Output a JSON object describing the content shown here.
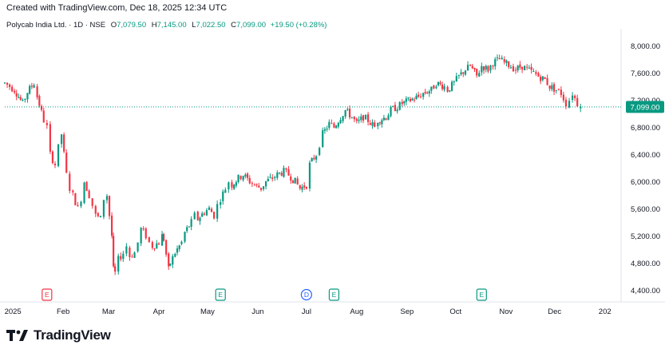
{
  "header": {
    "created_text": "Created with TradingView.com, Dec 18, 2025 12:34 UTC"
  },
  "legend": {
    "symbol": "Polycab India Ltd. · 1D · NSE",
    "open_label": "O",
    "open": "7,079.50",
    "high_label": "H",
    "high": "7,145.00",
    "low_label": "L",
    "low": "7,022.50",
    "close_label": "C",
    "close": "7,099.00",
    "change": "+19.50 (+0.28%)"
  },
  "footer": {
    "brand": "TradingView"
  },
  "colors": {
    "up": "#089981",
    "down": "#f23645",
    "price_line": "#089981",
    "earnings": "#089981",
    "earnings_red": "#f23645",
    "dividend": "#2962ff"
  },
  "chart_data": {
    "type": "candlestick",
    "title": "Polycab India Ltd. · 1D · NSE",
    "last_price": 7099,
    "last_price_label": "7,099.00",
    "ylim": [
      4250,
      8250
    ],
    "y_ticks": [
      4400,
      4800,
      5200,
      5600,
      6000,
      6400,
      6800,
      7200,
      7600,
      8000
    ],
    "y_tick_labels": [
      "4,400.00",
      "4,800.00",
      "5,200.00",
      "5,600.00",
      "6,000.00",
      "6,400.00",
      "6,800.00",
      "7,200.00",
      "7,600.00",
      "8,000.00"
    ],
    "x_range": [
      "2024-12-27",
      "2026-01-10"
    ],
    "x_ticks": [
      {
        "date": "2025-01-01",
        "label": "2025"
      },
      {
        "date": "2025-02-01",
        "label": "Feb"
      },
      {
        "date": "2025-03-01",
        "label": "Mar"
      },
      {
        "date": "2025-04-01",
        "label": "Apr"
      },
      {
        "date": "2025-05-01",
        "label": "May"
      },
      {
        "date": "2025-06-01",
        "label": "Jun"
      },
      {
        "date": "2025-07-01",
        "label": "Jul"
      },
      {
        "date": "2025-08-01",
        "label": "Aug"
      },
      {
        "date": "2025-09-01",
        "label": "Sep"
      },
      {
        "date": "2025-10-01",
        "label": "Oct"
      },
      {
        "date": "2025-11-01",
        "label": "Nov"
      },
      {
        "date": "2025-12-01",
        "label": "Dec"
      },
      {
        "date": "2026-01-01",
        "label": "202"
      }
    ],
    "events": [
      {
        "date": "2025-01-22",
        "label": "E",
        "kind": "earnings-down"
      },
      {
        "date": "2025-05-09",
        "label": "E",
        "kind": "earnings"
      },
      {
        "date": "2025-07-01",
        "label": "D",
        "kind": "dividend"
      },
      {
        "date": "2025-07-18",
        "label": "E",
        "kind": "earnings"
      },
      {
        "date": "2025-10-17",
        "label": "E",
        "kind": "earnings"
      }
    ],
    "closes": [
      [
        "2024-12-27",
        7450
      ],
      [
        "2025-01-02",
        7350
      ],
      [
        "2025-01-07",
        7150
      ],
      [
        "2025-01-10",
        7320
      ],
      [
        "2025-01-14",
        7450
      ],
      [
        "2025-01-16",
        7250
      ],
      [
        "2025-01-20",
        6900
      ],
      [
        "2025-01-22",
        6800
      ],
      [
        "2025-01-24",
        6400
      ],
      [
        "2025-01-27",
        6250
      ],
      [
        "2025-01-29",
        6500
      ],
      [
        "2025-01-31",
        6700
      ],
      [
        "2025-02-03",
        6100
      ],
      [
        "2025-02-05",
        5900
      ],
      [
        "2025-02-07",
        5800
      ],
      [
        "2025-02-10",
        5600
      ],
      [
        "2025-02-12",
        5750
      ],
      [
        "2025-02-14",
        6000
      ],
      [
        "2025-02-17",
        5800
      ],
      [
        "2025-02-19",
        5650
      ],
      [
        "2025-02-21",
        5500
      ],
      [
        "2025-02-24",
        5450
      ],
      [
        "2025-02-26",
        5750
      ],
      [
        "2025-02-28",
        5800
      ],
      [
        "2025-03-03",
        5200
      ],
      [
        "2025-03-04",
        4700
      ],
      [
        "2025-03-05",
        4650
      ],
      [
        "2025-03-07",
        4850
      ],
      [
        "2025-03-10",
        4950
      ],
      [
        "2025-03-12",
        5050
      ],
      [
        "2025-03-14",
        4900
      ],
      [
        "2025-03-17",
        4950
      ],
      [
        "2025-03-19",
        5100
      ],
      [
        "2025-03-21",
        5300
      ],
      [
        "2025-03-24",
        5200
      ],
      [
        "2025-03-26",
        5100
      ],
      [
        "2025-03-28",
        5050
      ],
      [
        "2025-04-01",
        5100
      ],
      [
        "2025-04-03",
        5200
      ],
      [
        "2025-04-04",
        5150
      ],
      [
        "2025-04-07",
        4700
      ],
      [
        "2025-04-08",
        4800
      ],
      [
        "2025-04-11",
        4950
      ],
      [
        "2025-04-15",
        5100
      ],
      [
        "2025-04-17",
        5250
      ],
      [
        "2025-04-21",
        5400
      ],
      [
        "2025-04-23",
        5500
      ],
      [
        "2025-04-25",
        5450
      ],
      [
        "2025-04-29",
        5550
      ],
      [
        "2025-05-02",
        5600
      ],
      [
        "2025-05-05",
        5500
      ],
      [
        "2025-05-07",
        5650
      ],
      [
        "2025-05-09",
        5750
      ],
      [
        "2025-05-12",
        5900
      ],
      [
        "2025-05-14",
        6000
      ],
      [
        "2025-05-16",
        5950
      ],
      [
        "2025-05-20",
        6050
      ],
      [
        "2025-05-23",
        6100
      ],
      [
        "2025-05-27",
        6000
      ],
      [
        "2025-05-30",
        5950
      ],
      [
        "2025-06-03",
        5900
      ],
      [
        "2025-06-06",
        6000
      ],
      [
        "2025-06-10",
        6050
      ],
      [
        "2025-06-13",
        6100
      ],
      [
        "2025-06-17",
        6150
      ],
      [
        "2025-06-20",
        6100
      ],
      [
        "2025-06-24",
        6000
      ],
      [
        "2025-06-27",
        5900
      ],
      [
        "2025-07-01",
        5950
      ],
      [
        "2025-07-03",
        6250
      ],
      [
        "2025-07-07",
        6400
      ],
      [
        "2025-07-09",
        6550
      ],
      [
        "2025-07-11",
        6700
      ],
      [
        "2025-07-15",
        6850
      ],
      [
        "2025-07-18",
        6800
      ],
      [
        "2025-07-22",
        6950
      ],
      [
        "2025-07-25",
        7050
      ],
      [
        "2025-07-29",
        6950
      ],
      [
        "2025-08-01",
        6850
      ],
      [
        "2025-08-05",
        6950
      ],
      [
        "2025-08-08",
        6900
      ],
      [
        "2025-08-12",
        6800
      ],
      [
        "2025-08-14",
        6900
      ],
      [
        "2025-08-19",
        6950
      ],
      [
        "2025-08-22",
        7050
      ],
      [
        "2025-08-26",
        7100
      ],
      [
        "2025-08-29",
        7150
      ],
      [
        "2025-09-03",
        7200
      ],
      [
        "2025-09-08",
        7250
      ],
      [
        "2025-09-11",
        7300
      ],
      [
        "2025-09-16",
        7350
      ],
      [
        "2025-09-19",
        7450
      ],
      [
        "2025-09-24",
        7400
      ],
      [
        "2025-09-26",
        7350
      ],
      [
        "2025-09-30",
        7450
      ],
      [
        "2025-10-03",
        7550
      ],
      [
        "2025-10-07",
        7650
      ],
      [
        "2025-10-10",
        7700
      ],
      [
        "2025-10-14",
        7550
      ],
      [
        "2025-10-17",
        7700
      ],
      [
        "2025-10-21",
        7650
      ],
      [
        "2025-10-24",
        7750
      ],
      [
        "2025-10-28",
        7800
      ],
      [
        "2025-10-31",
        7750
      ],
      [
        "2025-11-04",
        7700
      ],
      [
        "2025-11-07",
        7650
      ],
      [
        "2025-11-11",
        7700
      ],
      [
        "2025-11-14",
        7650
      ],
      [
        "2025-11-18",
        7600
      ],
      [
        "2025-11-21",
        7550
      ],
      [
        "2025-11-25",
        7500
      ],
      [
        "2025-11-28",
        7400
      ],
      [
        "2025-12-02",
        7350
      ],
      [
        "2025-12-05",
        7300
      ],
      [
        "2025-12-08",
        7150
      ],
      [
        "2025-12-10",
        7200
      ],
      [
        "2025-12-12",
        7300
      ],
      [
        "2025-12-15",
        7150
      ],
      [
        "2025-12-17",
        7099
      ]
    ]
  }
}
